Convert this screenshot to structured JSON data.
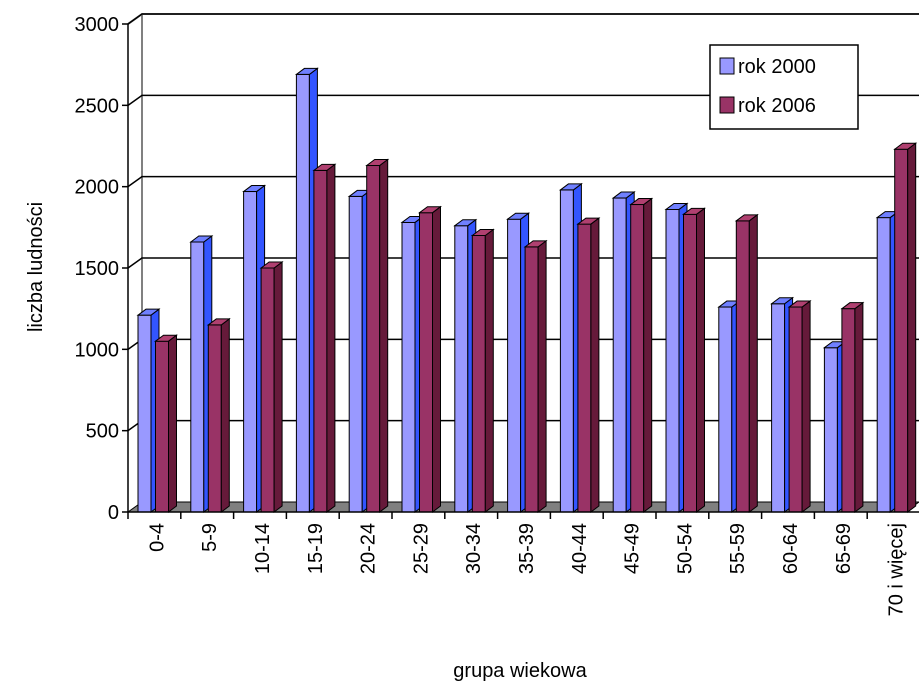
{
  "chart_data": {
    "type": "bar",
    "three_d": true,
    "xlabel": "grupa wiekowa",
    "ylabel": "liczba ludności",
    "ylim": [
      0,
      3000
    ],
    "yticks": [
      0,
      500,
      1000,
      1500,
      2000,
      2500,
      3000
    ],
    "grid": true,
    "legend_position": "top-right",
    "categories": [
      "0-4",
      "5-9",
      "10-14",
      "15-19",
      "20-24",
      "25-29",
      "30-34",
      "35-39",
      "40-44",
      "45-49",
      "50-54",
      "55-59",
      "60-64",
      "65-69",
      "70 i więcej"
    ],
    "series": [
      {
        "name": "rok 2000",
        "color": "#9999ff",
        "values": [
          1210,
          1660,
          1970,
          2690,
          1940,
          1780,
          1760,
          1800,
          1980,
          1930,
          1860,
          1260,
          1280,
          1010,
          1810
        ]
      },
      {
        "name": "rok 2006",
        "color": "#993366",
        "values": [
          1050,
          1150,
          1500,
          2100,
          2130,
          1840,
          1700,
          1630,
          1770,
          1890,
          1830,
          1790,
          1260,
          1250,
          2230
        ]
      }
    ]
  }
}
